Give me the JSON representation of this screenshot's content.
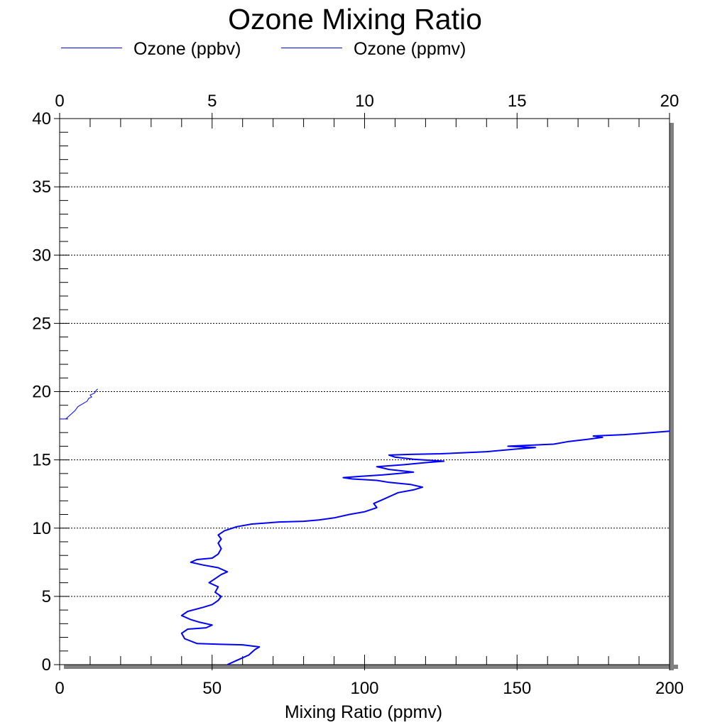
{
  "chart_data": {
    "type": "line",
    "title": "Ozone Mixing Ratio",
    "xlabel": "Mixing Ratio (ppmv)",
    "ylabel": "",
    "xlim_bottom": [
      0,
      200
    ],
    "xlim_top": [
      0,
      20
    ],
    "ylim": [
      0,
      40
    ],
    "x_ticks_bottom": [
      "0",
      "50",
      "100",
      "150",
      "200"
    ],
    "x_ticks_top": [
      "0",
      "5",
      "10",
      "15",
      "20"
    ],
    "y_ticks": [
      "0",
      "5",
      "10",
      "15",
      "20",
      "25",
      "30",
      "35",
      "40"
    ],
    "grid": "horizontal dotted",
    "legend": "top-left",
    "series": [
      {
        "name": "Ozone (ppbv)",
        "axis": "bottom",
        "color": "#0000ff",
        "points": [
          [
            55,
            0.0
          ],
          [
            58,
            0.3
          ],
          [
            62,
            0.7
          ],
          [
            64,
            1.1
          ],
          [
            65.5,
            1.3
          ],
          [
            60,
            1.45
          ],
          [
            52,
            1.5
          ],
          [
            45,
            1.55
          ],
          [
            41,
            1.9
          ],
          [
            40,
            2.3
          ],
          [
            42,
            2.6
          ],
          [
            48,
            2.7
          ],
          [
            50,
            2.9
          ],
          [
            46,
            3.1
          ],
          [
            43,
            3.3
          ],
          [
            40,
            3.6
          ],
          [
            42,
            3.9
          ],
          [
            47,
            4.2
          ],
          [
            50,
            4.4
          ],
          [
            52,
            4.7
          ],
          [
            53,
            5.0
          ],
          [
            51,
            5.3
          ],
          [
            52,
            5.7
          ],
          [
            49,
            6.0
          ],
          [
            51,
            6.3
          ],
          [
            53,
            6.6
          ],
          [
            55,
            6.8
          ],
          [
            52,
            7.1
          ],
          [
            47,
            7.3
          ],
          [
            43,
            7.5
          ],
          [
            45,
            7.7
          ],
          [
            50,
            7.8
          ],
          [
            52,
            8.1
          ],
          [
            53,
            8.5
          ],
          [
            52,
            8.9
          ],
          [
            53,
            9.2
          ],
          [
            52,
            9.5
          ],
          [
            54,
            9.8
          ],
          [
            58,
            10.1
          ],
          [
            63,
            10.3
          ],
          [
            72,
            10.45
          ],
          [
            80,
            10.5
          ],
          [
            85,
            10.6
          ],
          [
            90,
            10.75
          ],
          [
            95,
            11.0
          ],
          [
            100,
            11.2
          ],
          [
            104,
            11.5
          ],
          [
            103,
            11.8
          ],
          [
            106,
            12.1
          ],
          [
            109,
            12.4
          ],
          [
            111,
            12.6
          ],
          [
            116,
            12.8
          ],
          [
            119,
            13.0
          ],
          [
            115,
            13.2
          ],
          [
            108,
            13.35
          ],
          [
            104,
            13.5
          ],
          [
            96,
            13.6
          ],
          [
            93,
            13.7
          ],
          [
            99,
            13.8
          ],
          [
            106,
            13.9
          ],
          [
            111,
            14.0
          ],
          [
            116,
            14.1
          ],
          [
            108,
            14.3
          ],
          [
            104,
            14.5
          ],
          [
            113,
            14.65
          ],
          [
            120,
            14.8
          ],
          [
            126,
            14.9
          ],
          [
            116,
            15.05
          ],
          [
            110,
            15.2
          ],
          [
            108,
            15.35
          ],
          [
            115,
            15.4
          ],
          [
            125,
            15.45
          ],
          [
            140,
            15.6
          ],
          [
            150,
            15.8
          ],
          [
            156,
            15.9
          ],
          [
            147,
            16.0
          ],
          [
            162,
            16.15
          ],
          [
            167,
            16.35
          ],
          [
            173,
            16.5
          ],
          [
            178,
            16.65
          ],
          [
            175,
            16.75
          ],
          [
            185,
            16.85
          ],
          [
            200,
            17.1
          ]
        ]
      },
      {
        "name": "Ozone (ppmv)",
        "axis": "top",
        "color": "#0000ff",
        "points": [
          [
            0.0,
            18.0
          ],
          [
            0.2,
            18.0
          ],
          [
            0.35,
            18.3
          ],
          [
            0.5,
            18.6
          ],
          [
            0.6,
            18.9
          ],
          [
            0.75,
            19.1
          ],
          [
            0.9,
            19.3
          ],
          [
            0.95,
            19.5
          ],
          [
            1.05,
            19.6
          ],
          [
            1.0,
            19.75
          ],
          [
            1.15,
            19.9
          ],
          [
            1.2,
            20.1
          ],
          [
            1.25,
            20.2
          ]
        ]
      }
    ]
  }
}
